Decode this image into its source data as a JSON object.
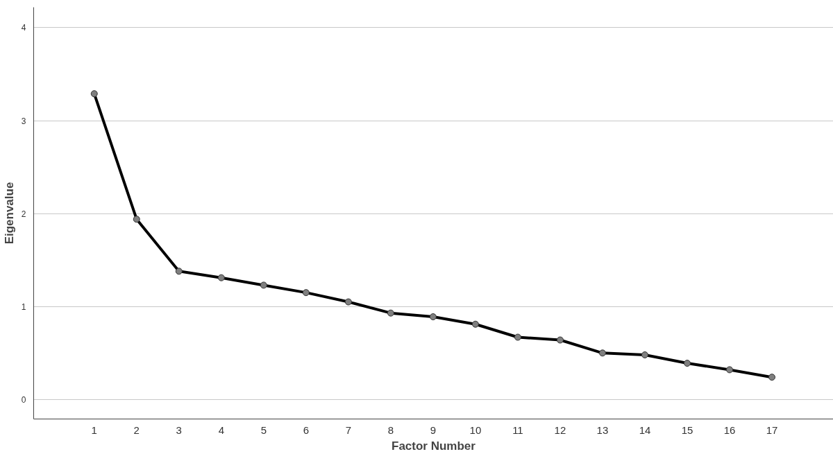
{
  "chart_data": {
    "type": "line",
    "xlabel": "Factor Number",
    "ylabel": "Eigenvalue",
    "x": [
      1,
      2,
      3,
      4,
      5,
      6,
      7,
      8,
      9,
      10,
      11,
      12,
      13,
      14,
      15,
      16,
      17
    ],
    "series": [
      {
        "color": "#000000",
        "values": [
          3.29,
          1.94,
          1.38,
          1.31,
          1.23,
          1.15,
          1.05,
          0.93,
          0.89,
          0.81,
          0.67,
          0.64,
          0.5,
          0.48,
          0.39,
          0.32,
          0.24
        ]
      }
    ],
    "xlim": [
      -0.43,
      18.45
    ],
    "xticks": [
      1,
      2,
      3,
      4,
      5,
      6,
      7,
      8,
      9,
      10,
      11,
      12,
      13,
      14,
      15,
      16,
      17
    ],
    "ylim": [
      -0.21,
      4.22
    ],
    "yticks": [
      0,
      1,
      2,
      3,
      4
    ],
    "grid": "y",
    "marker": "circle",
    "line_style": "solid"
  }
}
